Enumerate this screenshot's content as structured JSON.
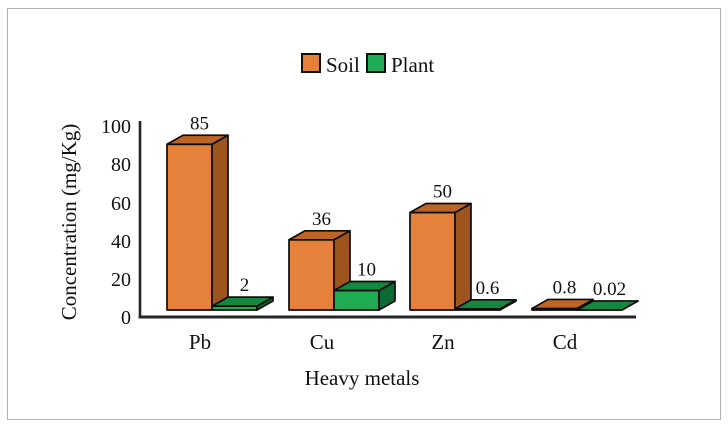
{
  "figure": {
    "background": "#ffffff",
    "border_color": "#b0b0b0"
  },
  "legend": {
    "items": [
      {
        "label": "Soil",
        "color": "#E5813A"
      },
      {
        "label": "Plant",
        "color": "#1FAC52"
      }
    ]
  },
  "axes": {
    "y_title": "Concentration (mg/Kg)",
    "x_title": "Heavy metals",
    "y_ticks": [
      "0",
      "20",
      "40",
      "60",
      "80",
      "100"
    ]
  },
  "chart_data": {
    "type": "bar",
    "style": "3d-clustered",
    "title": "",
    "xlabel": "Heavy metals",
    "ylabel": "Concentration (mg/Kg)",
    "categories": [
      "Pb",
      "Cu",
      "Zn",
      "Cd"
    ],
    "series": [
      {
        "name": "Soil",
        "values": [
          85,
          36,
          50,
          0.8
        ],
        "labels": [
          "85",
          "36",
          "50",
          "0.8"
        ],
        "colors": {
          "front": "#E5813A",
          "top": "#BE6525",
          "side": "#9D541D"
        }
      },
      {
        "name": "Plant",
        "values": [
          2,
          10,
          0.6,
          0.02
        ],
        "labels": [
          "2",
          "10",
          "0.6",
          "0.02"
        ],
        "colors": {
          "front": "#1FAC52",
          "top": "#148741",
          "side": "#0C6B33"
        }
      }
    ],
    "ylim": [
      0,
      100
    ],
    "yticks": [
      0,
      20,
      40,
      60,
      80,
      100
    ],
    "grid": false,
    "legend_position": "top-center",
    "data_labels": true
  }
}
